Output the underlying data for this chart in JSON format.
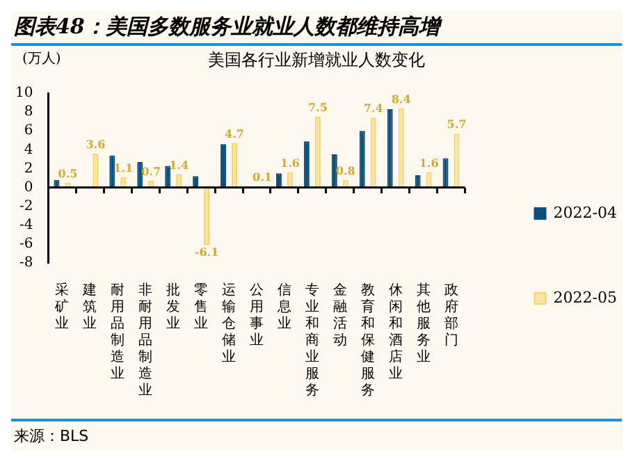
{
  "chart_data": {
    "type": "bar",
    "title": "图表48：美国多数服务业就业人数都维持高增",
    "subtitle": "美国各行业新增就业人数变化",
    "ylabel": "(万人)",
    "categories": [
      "采矿业",
      "建筑业",
      "耐用品制造业",
      "非耐用品制造业",
      "批发业",
      "零售业",
      "运输仓储业",
      "公用事业",
      "信息业",
      "专业和商业服务",
      "金融活动",
      "教育和保健服务",
      "休闲和酒店业",
      "其他服务业",
      "政府部门"
    ],
    "series": [
      {
        "name": "2022-04",
        "color": "#0b4f7e",
        "values": [
          0.8,
          0,
          3.4,
          2.7,
          2.3,
          1.2,
          4.6,
          0.1,
          1.5,
          4.9,
          3.5,
          6.0,
          8.3,
          1.3,
          3.1
        ]
      },
      {
        "name": "2022-05",
        "color": "#fde5a0",
        "values": [
          0.5,
          3.6,
          1.1,
          0.7,
          1.4,
          -6.1,
          4.7,
          0.1,
          1.6,
          7.5,
          0.8,
          7.4,
          8.4,
          1.6,
          5.7
        ],
        "value_labels": [
          "0.5",
          "3.6",
          "1.1",
          "0.7",
          "1.4",
          "-6.1",
          "4.7",
          "0.1",
          "1.6",
          "7.5",
          "0.8",
          "7.4",
          "8.4",
          "1.6",
          "5.7"
        ]
      }
    ],
    "ylim": [
      -8,
      10
    ],
    "yticks": [
      -8,
      -6,
      -4,
      -2,
      0,
      2,
      4,
      6,
      8,
      10
    ],
    "grid": false,
    "legend": "right",
    "ref_lines": [
      {
        "axis": "y",
        "value": 0,
        "color": "#000000"
      }
    ],
    "annotations": [
      "来源：BLS"
    ]
  }
}
